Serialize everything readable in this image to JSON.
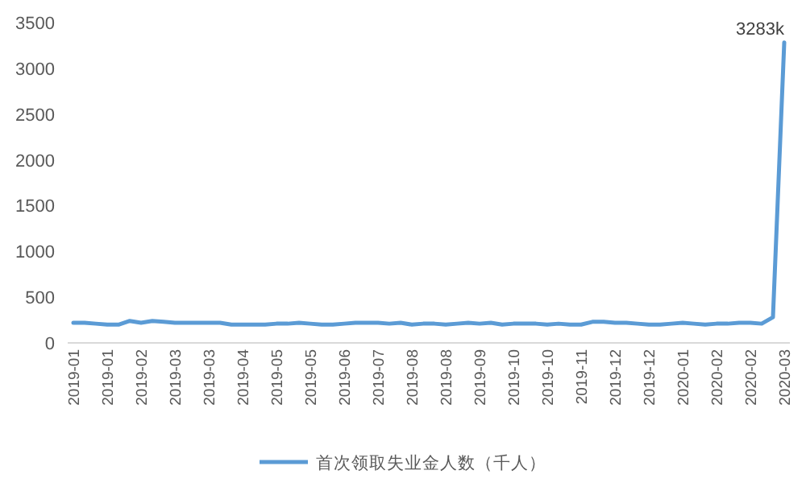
{
  "chart_data": {
    "type": "line",
    "categories": [
      "2019-01",
      null,
      null,
      "2019-01",
      null,
      null,
      "2019-02",
      null,
      null,
      "2019-03",
      null,
      null,
      "2019-03",
      null,
      null,
      "2019-04",
      null,
      null,
      "2019-05",
      null,
      null,
      "2019-05",
      null,
      null,
      "2019-06",
      null,
      null,
      "2019-07",
      null,
      null,
      "2019-08",
      null,
      null,
      "2019-08",
      null,
      null,
      "2019-09",
      null,
      null,
      "2019-10",
      null,
      null,
      "2019-10",
      null,
      null,
      "2019-11",
      null,
      null,
      "2019-12",
      null,
      null,
      "2019-12",
      null,
      null,
      "2020-01",
      null,
      null,
      "2020-02",
      null,
      null,
      "2020-02",
      null,
      null,
      "2020-03"
    ],
    "series": [
      {
        "name": "首次领取失业金人数（千人）",
        "color": "#5b9bd5",
        "values": [
          220,
          220,
          210,
          200,
          200,
          240,
          220,
          240,
          230,
          220,
          220,
          220,
          220,
          220,
          200,
          200,
          200,
          200,
          210,
          210,
          220,
          210,
          200,
          200,
          210,
          220,
          220,
          220,
          210,
          220,
          200,
          210,
          210,
          200,
          210,
          220,
          210,
          220,
          200,
          210,
          210,
          210,
          200,
          210,
          200,
          200,
          230,
          230,
          220,
          220,
          210,
          200,
          200,
          210,
          220,
          210,
          200,
          210,
          210,
          220,
          220,
          210,
          280,
          3283
        ],
        "value_labels": [
          null,
          null,
          null,
          null,
          null,
          null,
          null,
          null,
          null,
          null,
          null,
          null,
          null,
          null,
          null,
          null,
          null,
          null,
          null,
          null,
          null,
          null,
          null,
          null,
          null,
          null,
          null,
          null,
          null,
          null,
          null,
          null,
          null,
          null,
          null,
          null,
          null,
          null,
          null,
          null,
          null,
          null,
          null,
          null,
          null,
          null,
          null,
          null,
          null,
          null,
          null,
          null,
          null,
          null,
          null,
          null,
          null,
          null,
          null,
          null,
          null,
          null,
          null,
          "3283k"
        ]
      }
    ],
    "ylim": [
      0,
      3500
    ],
    "yticks": [
      0,
      500,
      1000,
      1500,
      2000,
      2500,
      3000,
      3500
    ],
    "legend": "bottom"
  }
}
